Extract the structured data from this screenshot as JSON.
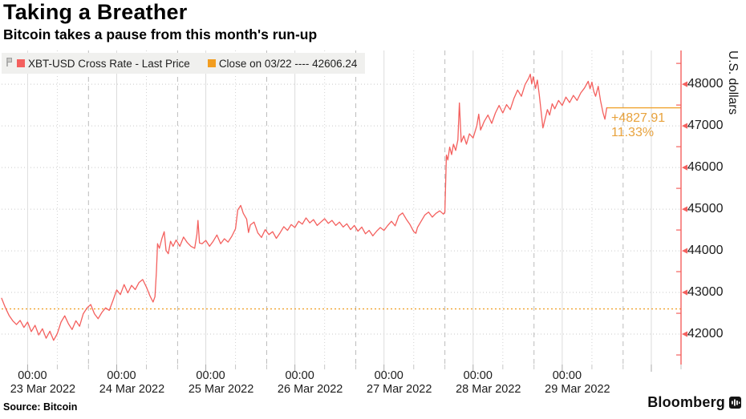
{
  "header": {
    "title": "Taking a Breather",
    "subtitle": "Bitcoin takes a pause from this month's run-up"
  },
  "legend": {
    "pin_icon": "pin-icon",
    "items": [
      {
        "label": "XBT-USD Cross Rate - Last Price",
        "color": "#f4605e"
      },
      {
        "label": "Close on 03/22 ---- 42606.24",
        "color": "#f29d20"
      }
    ]
  },
  "annotation": {
    "change": "+4827.91",
    "percent": "11.33%",
    "color": "#e8a23c"
  },
  "y_axis": {
    "title": "U.S. dollars",
    "tick_color": "#f4605e"
  },
  "footer": {
    "source": "Source: Bitcoin",
    "brand": "Bloomberg"
  },
  "chart_data": {
    "type": "line",
    "title": "Taking a Breather",
    "subtitle": "Bitcoin takes a pause from this month's run-up",
    "ylabel": "U.S. dollars",
    "ylim": [
      41270,
      48810
    ],
    "y_major_ticks": [
      42000,
      43000,
      44000,
      45000,
      46000,
      47000,
      48000
    ],
    "y_minor_step": 500,
    "grid": "dotted-both-axes",
    "legend_position": "top-left",
    "x_unit": "hours from 22 Mar 2022 17:00",
    "x_total_hours": 183,
    "x_days": [
      {
        "time": "00:00",
        "date": "23 Mar 2022",
        "hour": 7
      },
      {
        "time": "00:00",
        "date": "24 Mar 2022",
        "hour": 31
      },
      {
        "time": "00:00",
        "date": "25 Mar 2022",
        "hour": 55
      },
      {
        "time": "00:00",
        "date": "26 Mar 2022",
        "hour": 79
      },
      {
        "time": "00:00",
        "date": "27 Mar 2022",
        "hour": 103
      },
      {
        "time": "00:00",
        "date": "28 Mar 2022",
        "hour": 127
      },
      {
        "time": "00:00",
        "date": "29 Mar 2022",
        "hour": 151
      }
    ],
    "reference_lines": [
      {
        "name": "Close on 03/22",
        "value": 42606.24,
        "style": "dotted",
        "color": "#f0a22e",
        "from_hour": 0,
        "to_hour": 183
      },
      {
        "name": "Last price",
        "value": 47434.15,
        "style": "solid",
        "color": "#f0a22e",
        "from_hour": 163,
        "to_hour": 183
      }
    ],
    "annotation": {
      "text_lines": [
        "+4827.91",
        "11.33%"
      ],
      "at_value": 47434.15,
      "color": "#e8a23c"
    },
    "series": [
      {
        "name": "XBT-USD Cross Rate - Last Price",
        "color": "#f4605e",
        "last_price": 47434.15,
        "points": [
          [
            0,
            42860
          ],
          [
            1,
            42640
          ],
          [
            2,
            42450
          ],
          [
            3,
            42320
          ],
          [
            4,
            42230
          ],
          [
            5,
            42330
          ],
          [
            6,
            42160
          ],
          [
            7,
            42290
          ],
          [
            8,
            42060
          ],
          [
            9,
            42210
          ],
          [
            10,
            41980
          ],
          [
            11,
            42130
          ],
          [
            12,
            41900
          ],
          [
            13,
            42070
          ],
          [
            14,
            41850
          ],
          [
            15,
            42010
          ],
          [
            16,
            42290
          ],
          [
            17,
            42440
          ],
          [
            18,
            42250
          ],
          [
            19,
            42110
          ],
          [
            20,
            42320
          ],
          [
            21,
            42190
          ],
          [
            22,
            42490
          ],
          [
            23,
            42630
          ],
          [
            24,
            42710
          ],
          [
            25,
            42490
          ],
          [
            26,
            42370
          ],
          [
            27,
            42520
          ],
          [
            28,
            42630
          ],
          [
            29,
            42570
          ],
          [
            30,
            42810
          ],
          [
            31,
            43060
          ],
          [
            32,
            42950
          ],
          [
            33,
            43190
          ],
          [
            34,
            42990
          ],
          [
            35,
            43170
          ],
          [
            36,
            43070
          ],
          [
            37,
            43240
          ],
          [
            38,
            43310
          ],
          [
            39,
            43130
          ],
          [
            40,
            42910
          ],
          [
            40.8,
            42770
          ],
          [
            41.3,
            42900
          ],
          [
            41.7,
            43500
          ],
          [
            42,
            44170
          ],
          [
            42.5,
            44060
          ],
          [
            43.2,
            44300
          ],
          [
            43.8,
            44460
          ],
          [
            44.3,
            44010
          ],
          [
            44.9,
            43930
          ],
          [
            45.5,
            44230
          ],
          [
            46.2,
            44110
          ],
          [
            47,
            44260
          ],
          [
            48,
            44110
          ],
          [
            49,
            44330
          ],
          [
            50,
            44200
          ],
          [
            51,
            44110
          ],
          [
            52,
            44060
          ],
          [
            52.6,
            44400
          ],
          [
            52.9,
            44730
          ],
          [
            53.3,
            44190
          ],
          [
            54,
            44170
          ],
          [
            55,
            44250
          ],
          [
            56,
            44110
          ],
          [
            57,
            44230
          ],
          [
            58,
            44380
          ],
          [
            59,
            44170
          ],
          [
            60,
            44290
          ],
          [
            61,
            44210
          ],
          [
            62,
            44350
          ],
          [
            63,
            44530
          ],
          [
            63.6,
            44980
          ],
          [
            64.4,
            45090
          ],
          [
            65.1,
            44900
          ],
          [
            66,
            44760
          ],
          [
            66.5,
            44440
          ],
          [
            67,
            44620
          ],
          [
            68,
            44690
          ],
          [
            69,
            44430
          ],
          [
            70,
            44320
          ],
          [
            71,
            44510
          ],
          [
            72,
            44390
          ],
          [
            73,
            44460
          ],
          [
            74,
            44300
          ],
          [
            75,
            44430
          ],
          [
            76,
            44580
          ],
          [
            77,
            44490
          ],
          [
            78,
            44630
          ],
          [
            79,
            44560
          ],
          [
            80,
            44710
          ],
          [
            81,
            44640
          ],
          [
            82,
            44790
          ],
          [
            83,
            44670
          ],
          [
            84,
            44750
          ],
          [
            85,
            44610
          ],
          [
            86,
            44690
          ],
          [
            87,
            44770
          ],
          [
            88,
            44660
          ],
          [
            89,
            44730
          ],
          [
            90,
            44610
          ],
          [
            91,
            44690
          ],
          [
            92,
            44570
          ],
          [
            93,
            44650
          ],
          [
            94,
            44510
          ],
          [
            95,
            44610
          ],
          [
            96,
            44470
          ],
          [
            97,
            44570
          ],
          [
            98,
            44410
          ],
          [
            99,
            44490
          ],
          [
            100,
            44360
          ],
          [
            101,
            44470
          ],
          [
            102,
            44560
          ],
          [
            103,
            44490
          ],
          [
            104,
            44610
          ],
          [
            105,
            44710
          ],
          [
            106,
            44600
          ],
          [
            107,
            44840
          ],
          [
            108,
            44910
          ],
          [
            109,
            44760
          ],
          [
            110,
            44630
          ],
          [
            111,
            44460
          ],
          [
            111.6,
            44420
          ],
          [
            112,
            44560
          ],
          [
            113,
            44710
          ],
          [
            114,
            44860
          ],
          [
            115,
            44930
          ],
          [
            116,
            44810
          ],
          [
            117,
            44900
          ],
          [
            118,
            44960
          ],
          [
            119,
            44880
          ],
          [
            119.4,
            44930
          ],
          [
            119.8,
            46300
          ],
          [
            120.2,
            46180
          ],
          [
            120.7,
            46490
          ],
          [
            121.2,
            46310
          ],
          [
            121.7,
            46560
          ],
          [
            122.3,
            46410
          ],
          [
            122.9,
            46660
          ],
          [
            123.3,
            47550
          ],
          [
            123.8,
            46610
          ],
          [
            124.5,
            46760
          ],
          [
            125.2,
            46560
          ],
          [
            126,
            46810
          ],
          [
            127,
            46710
          ],
          [
            128,
            47000
          ],
          [
            128.5,
            47280
          ],
          [
            129,
            46900
          ],
          [
            130,
            47110
          ],
          [
            131,
            47260
          ],
          [
            132,
            47060
          ],
          [
            133,
            47310
          ],
          [
            134,
            47490
          ],
          [
            135,
            47310
          ],
          [
            136,
            47510
          ],
          [
            137,
            47390
          ],
          [
            138,
            47660
          ],
          [
            139,
            47860
          ],
          [
            140,
            47710
          ],
          [
            141,
            47990
          ],
          [
            142,
            48150
          ],
          [
            142.4,
            48240
          ],
          [
            142.8,
            48010
          ],
          [
            143.2,
            48180
          ],
          [
            143.8,
            47900
          ],
          [
            144.3,
            48100
          ],
          [
            144.8,
            47760
          ],
          [
            145.3,
            47360
          ],
          [
            145.8,
            46950
          ],
          [
            146.3,
            47130
          ],
          [
            147,
            47390
          ],
          [
            147.6,
            47260
          ],
          [
            148.3,
            47530
          ],
          [
            149,
            47410
          ],
          [
            150,
            47610
          ],
          [
            151,
            47490
          ],
          [
            152,
            47690
          ],
          [
            153,
            47560
          ],
          [
            154,
            47730
          ],
          [
            155,
            47610
          ],
          [
            156,
            47790
          ],
          [
            157,
            47910
          ],
          [
            158,
            48070
          ],
          [
            158.5,
            47890
          ],
          [
            159,
            48050
          ],
          [
            159.5,
            47830
          ],
          [
            160,
            47710
          ],
          [
            160.7,
            47950
          ],
          [
            161.3,
            47610
          ],
          [
            162,
            47310
          ],
          [
            162.5,
            47160
          ],
          [
            163,
            47434
          ]
        ]
      }
    ],
    "colors": {
      "series": "#f4605e",
      "axis": "#f4605e",
      "orange": "#f0a22e",
      "grid_h": "#c9c9c9",
      "grid_v_dot": "#d2d2d2",
      "grid_v_solid": "#dcdcdc",
      "grid_v_dash": "#bcbcbc",
      "tick_gray": "#a8a8a8"
    }
  }
}
